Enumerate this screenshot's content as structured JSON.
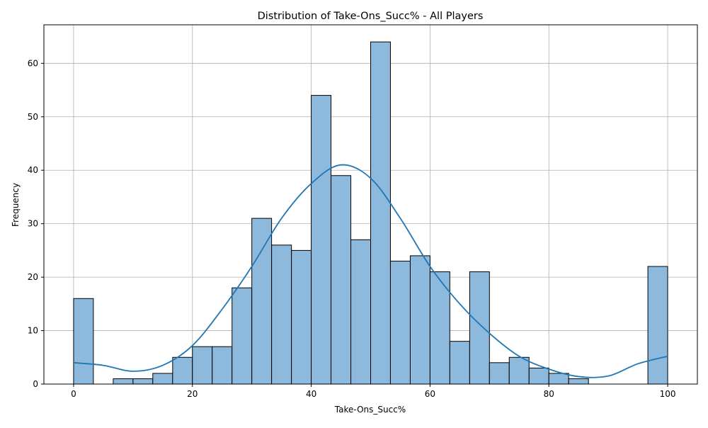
{
  "chart_data": {
    "type": "bar",
    "title": "Distribution of Take-Ons_Succ% - All Players",
    "xlabel": "Take-Ons_Succ%",
    "ylabel": "Frequency",
    "xlim": [
      -5,
      105
    ],
    "ylim": [
      0,
      67.2
    ],
    "x_ticks": [
      0,
      20,
      40,
      60,
      80,
      100
    ],
    "y_ticks": [
      0,
      10,
      20,
      30,
      40,
      50,
      60
    ],
    "grid": true,
    "bin_width": 3.333,
    "bins": [
      {
        "x0": 0.0,
        "x1": 3.33,
        "count": 16
      },
      {
        "x0": 3.33,
        "x1": 6.67,
        "count": 0
      },
      {
        "x0": 6.67,
        "x1": 10.0,
        "count": 1
      },
      {
        "x0": 10.0,
        "x1": 13.33,
        "count": 1
      },
      {
        "x0": 13.33,
        "x1": 16.67,
        "count": 2
      },
      {
        "x0": 16.67,
        "x1": 20.0,
        "count": 5
      },
      {
        "x0": 20.0,
        "x1": 23.33,
        "count": 7
      },
      {
        "x0": 23.33,
        "x1": 26.67,
        "count": 7
      },
      {
        "x0": 26.67,
        "x1": 30.0,
        "count": 18
      },
      {
        "x0": 30.0,
        "x1": 33.33,
        "count": 31
      },
      {
        "x0": 33.33,
        "x1": 36.67,
        "count": 26
      },
      {
        "x0": 36.67,
        "x1": 40.0,
        "count": 25
      },
      {
        "x0": 40.0,
        "x1": 43.33,
        "count": 54
      },
      {
        "x0": 43.33,
        "x1": 46.67,
        "count": 39
      },
      {
        "x0": 46.67,
        "x1": 50.0,
        "count": 27
      },
      {
        "x0": 50.0,
        "x1": 53.33,
        "count": 64
      },
      {
        "x0": 53.33,
        "x1": 56.67,
        "count": 23
      },
      {
        "x0": 56.67,
        "x1": 60.0,
        "count": 24
      },
      {
        "x0": 60.0,
        "x1": 63.33,
        "count": 21
      },
      {
        "x0": 63.33,
        "x1": 66.67,
        "count": 8
      },
      {
        "x0": 66.67,
        "x1": 70.0,
        "count": 21
      },
      {
        "x0": 70.0,
        "x1": 73.33,
        "count": 4
      },
      {
        "x0": 73.33,
        "x1": 76.67,
        "count": 5
      },
      {
        "x0": 76.67,
        "x1": 80.0,
        "count": 3
      },
      {
        "x0": 80.0,
        "x1": 83.33,
        "count": 2
      },
      {
        "x0": 83.33,
        "x1": 86.67,
        "count": 1
      },
      {
        "x0": 86.67,
        "x1": 90.0,
        "count": 0
      },
      {
        "x0": 90.0,
        "x1": 93.33,
        "count": 0
      },
      {
        "x0": 93.33,
        "x1": 96.67,
        "count": 0
      },
      {
        "x0": 96.67,
        "x1": 100.0,
        "count": 22
      }
    ],
    "kde": {
      "x": [
        0,
        5,
        10,
        15,
        20,
        25,
        30,
        35,
        40,
        45,
        50,
        55,
        60,
        65,
        70,
        75,
        80,
        85,
        90,
        95,
        100
      ],
      "y": [
        4.0,
        3.5,
        2.4,
        3.5,
        7.2,
        14.0,
        22.0,
        31.0,
        37.5,
        41.0,
        38.5,
        31.0,
        22.0,
        15.0,
        9.5,
        5.2,
        2.8,
        1.4,
        1.5,
        3.8,
        5.2
      ]
    },
    "colors": {
      "bar_fill": "#8db9dc",
      "bar_edge": "#000000",
      "kde_line": "#1f77b4",
      "grid": "#b0b0b0"
    }
  }
}
